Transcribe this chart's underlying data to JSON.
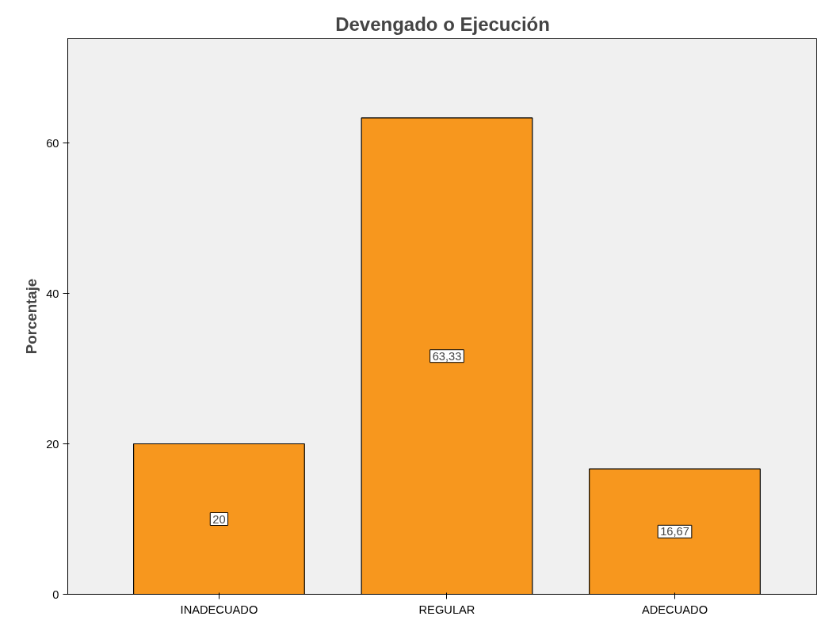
{
  "chart_data": {
    "type": "bar",
    "title": "Devengado o Ejecución",
    "ylabel": "Porcentaje",
    "categories": [
      "INADECUADO",
      "REGULAR",
      "ADECUADO"
    ],
    "values": [
      20,
      63.33,
      16.67
    ],
    "value_labels": [
      "20",
      "63,33",
      "16,67"
    ],
    "color": "#f7971e",
    "ylim": [
      0,
      73.9
    ],
    "yticks": [
      0,
      20,
      40,
      60
    ],
    "grid": false
  }
}
